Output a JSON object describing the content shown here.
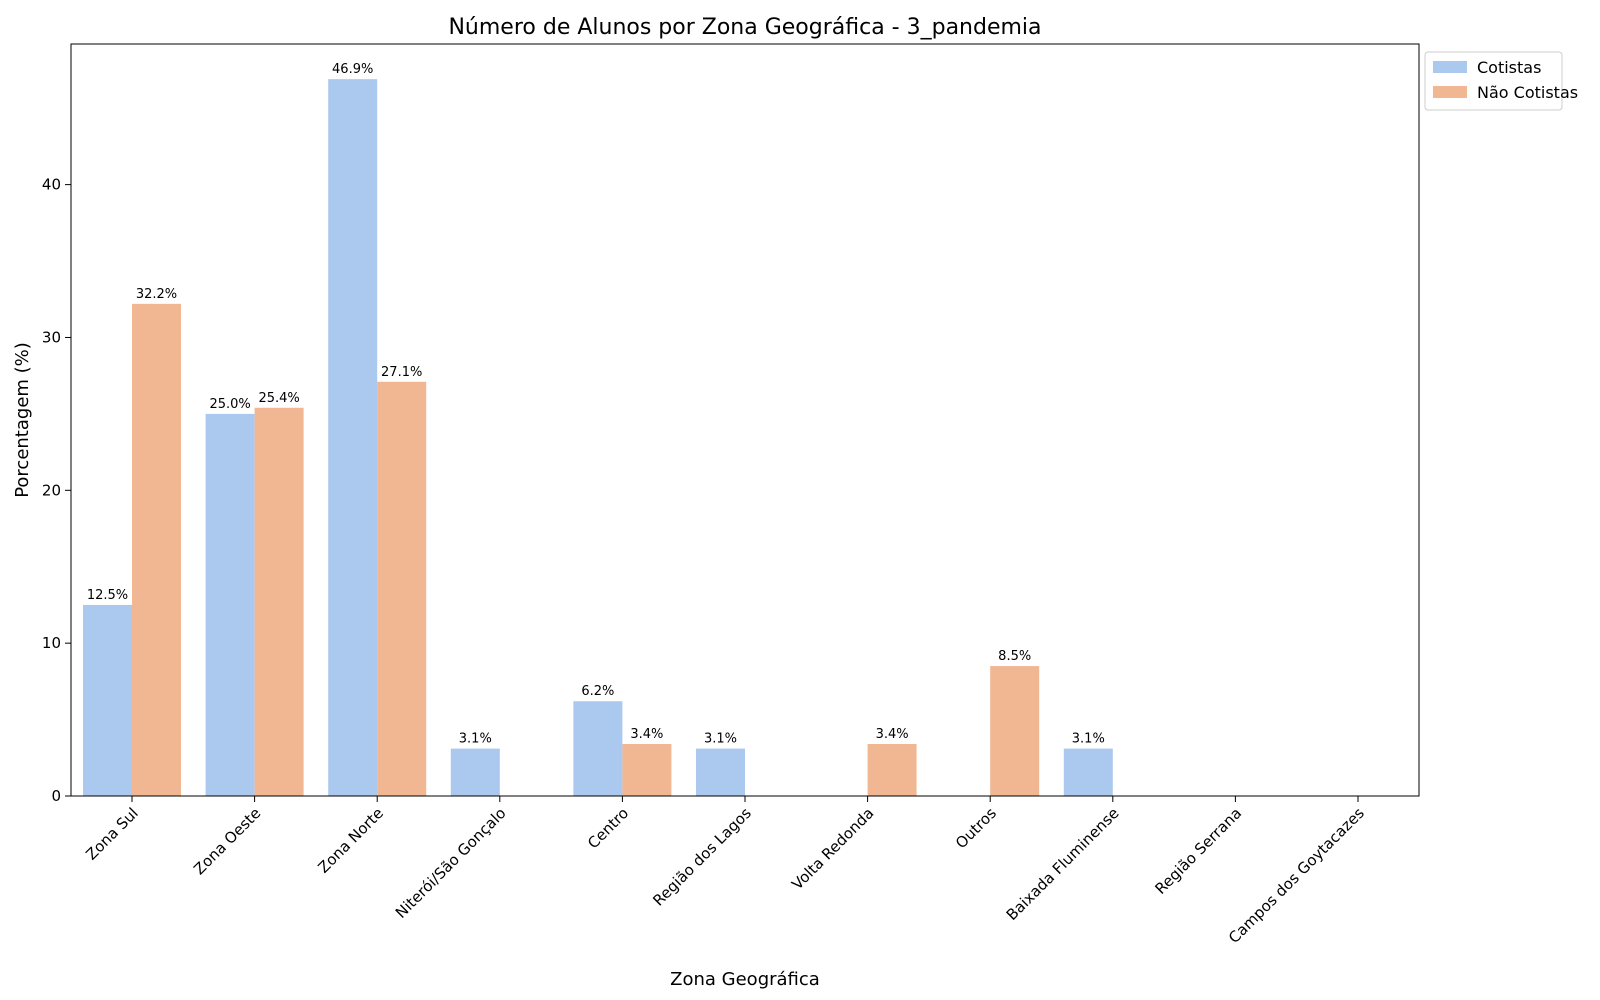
{
  "chart_data": {
    "type": "bar",
    "title": "Número de Alunos por Zona Geográfica - 3_pandemia",
    "xlabel": "Zona Geográfica",
    "ylabel": "Porcentagem (%)",
    "ylim": [
      0,
      49.2
    ],
    "yticks": [
      0,
      10,
      20,
      30,
      40
    ],
    "grid": false,
    "legend_position": "top-right-outside",
    "categories": [
      "Zona Sul",
      "Zona Oeste",
      "Zona Norte",
      "Niterói/São Gonçalo",
      "Centro",
      "Região dos Lagos",
      "Volta Redonda",
      "Outros",
      "Baixada Fluminense",
      "Região Serrana",
      "Campos dos Goytacazes"
    ],
    "series": [
      {
        "name": "Cotistas",
        "color": "#abc9ee",
        "values": [
          12.5,
          25.0,
          46.9,
          3.1,
          6.2,
          3.1,
          0,
          0,
          3.1,
          0,
          0
        ],
        "labels": [
          "12.5%",
          "25.0%",
          "46.9%",
          "3.1%",
          "6.2%",
          "3.1%",
          "",
          "",
          "3.1%",
          "",
          ""
        ]
      },
      {
        "name": "Não Cotistas",
        "color": "#f0b792",
        "values": [
          32.2,
          25.4,
          27.1,
          0,
          3.4,
          0,
          3.4,
          8.5,
          0,
          0,
          0
        ],
        "labels": [
          "32.2%",
          "25.4%",
          "27.1%",
          "",
          "3.4%",
          "",
          "3.4%",
          "8.5%",
          "",
          "",
          ""
        ]
      }
    ]
  }
}
